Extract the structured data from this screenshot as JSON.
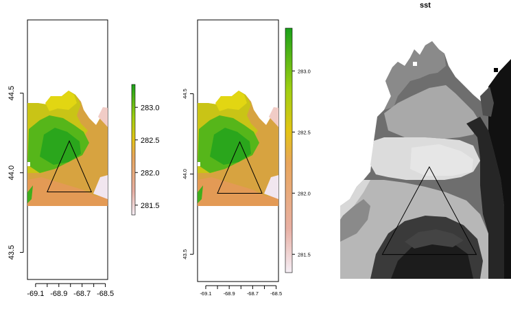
{
  "chart_data": [
    {
      "type": "heatmap",
      "title": "",
      "x_ticks": [
        -69.1,
        -68.9,
        -68.7,
        -68.5
      ],
      "x_tick_labels": [
        "-69.1",
        "-68.9",
        "-68.7",
        "-68.5"
      ],
      "y_ticks": [
        43.5,
        44.0,
        44.5
      ],
      "y_tick_labels": [
        "43.5",
        "44.0",
        "44.5"
      ],
      "xlim": [
        -69.17,
        -68.48
      ],
      "ylim": [
        43.33,
        44.96
      ],
      "legend": {
        "ticks": [
          281.5,
          282.0,
          282.5,
          283.0
        ],
        "tick_labels": [
          "281.5",
          "282.0",
          "282.5",
          "283.0"
        ],
        "range": [
          281.35,
          283.35
        ],
        "palette": "terrain"
      },
      "triangle": [
        [
          -69.0,
          43.88
        ],
        [
          -68.81,
          44.2
        ],
        [
          -68.62,
          43.88
        ]
      ]
    },
    {
      "type": "heatmap",
      "title": "",
      "x_ticks": [
        -69.1,
        -68.9,
        -68.7,
        -68.5
      ],
      "x_tick_labels": [
        "-69.1",
        "-68.9",
        "-68.7",
        "-68.5"
      ],
      "y_ticks": [
        43.5,
        44.0,
        44.5
      ],
      "y_tick_labels": [
        "43.5",
        "44.0",
        "44.5"
      ],
      "xlim": [
        -69.17,
        -68.48
      ],
      "ylim": [
        43.33,
        44.96
      ],
      "legend": {
        "ticks": [
          281.5,
          282.0,
          282.5,
          283.0
        ],
        "tick_labels": [
          "281.5",
          "282.0",
          "282.5",
          "283.0"
        ],
        "range": [
          281.35,
          283.35
        ],
        "palette": "terrain"
      },
      "triangle": [
        [
          -69.0,
          43.88
        ],
        [
          -68.81,
          44.2
        ],
        [
          -68.62,
          43.88
        ]
      ]
    },
    {
      "type": "heatmap",
      "title": "sst",
      "palette": "grayscale",
      "triangle": [
        [
          -69.0,
          43.88
        ],
        [
          -68.81,
          44.2
        ],
        [
          -68.62,
          43.88
        ]
      ]
    }
  ],
  "colors": {
    "high": "#1f9e1f",
    "mid": "#e8c200",
    "low": "#e9a06a",
    "lowest": "#f2eef2"
  }
}
